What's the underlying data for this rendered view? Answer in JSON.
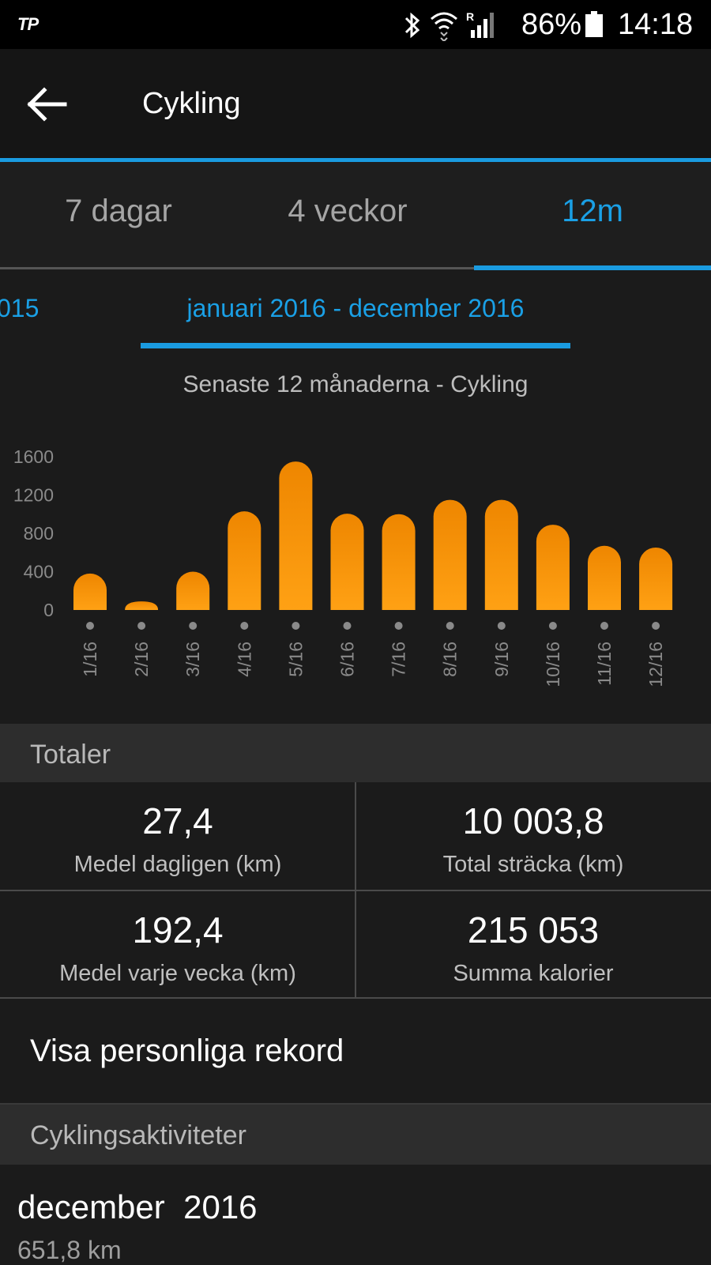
{
  "status_bar": {
    "carrier_logo": "TP",
    "icons": [
      "bluetooth-icon",
      "wifi-icon",
      "signal-roaming-icon",
      "battery-icon"
    ],
    "battery_percent": "86%",
    "time": "14:18"
  },
  "app_bar": {
    "back_icon": "arrow-left-icon",
    "title": "Cykling"
  },
  "tabs": [
    {
      "label": "7 dagar",
      "active": false
    },
    {
      "label": "4 veckor",
      "active": false
    },
    {
      "label": "12m",
      "active": true
    }
  ],
  "range": {
    "previous_partial": "015",
    "current": "januari 2016 - december 2016"
  },
  "chart_subtitle": "Senaste 12 månaderna - Cykling",
  "chart_data": {
    "type": "bar",
    "categories": [
      "1/16",
      "2/16",
      "3/16",
      "4/16",
      "5/16",
      "6/16",
      "7/16",
      "8/16",
      "9/16",
      "10/16",
      "11/16",
      "12/16"
    ],
    "values": [
      380,
      90,
      400,
      1030,
      1550,
      1005,
      1000,
      1150,
      1150,
      890,
      670,
      652
    ],
    "y_ticks": [
      "1600",
      "1200",
      "800",
      "400",
      "0"
    ],
    "ylim": [
      0,
      1600
    ],
    "grid": false,
    "colors": {
      "bar_top": "#ee8600",
      "bar_bottom": "#ffa114",
      "tick_label": "#8a8a8a"
    }
  },
  "totals": {
    "header": "Totaler",
    "items": [
      {
        "value": "27,4",
        "label": "Medel dagligen (km)"
      },
      {
        "value": "10 003,8",
        "label": "Total sträcka (km)"
      },
      {
        "value": "192,4",
        "label": "Medel varje vecka (km)"
      },
      {
        "value": "215 053",
        "label": "Summa kalorier"
      }
    ]
  },
  "records_link": "Visa personliga rekord",
  "activities": {
    "header": "Cyklingsaktiviteter",
    "items": [
      {
        "title": "december  2016",
        "subtitle": "651,8 km"
      }
    ]
  },
  "colors": {
    "accent": "#1a9be0",
    "background": "#1b1b1b",
    "section_header": "#2d2d2d"
  }
}
